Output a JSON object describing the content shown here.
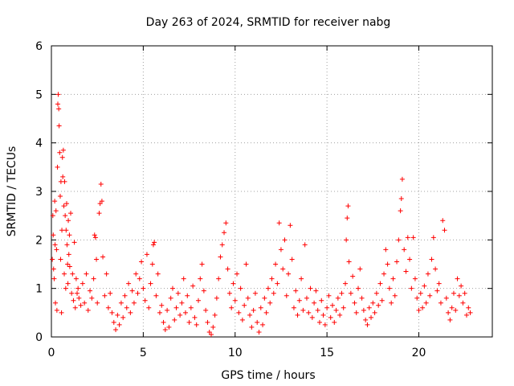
{
  "chart_data": {
    "type": "scatter",
    "title": "Day 263 of 2024, SRMTID for receiver nabg",
    "xlabel": "GPS time / hours",
    "ylabel": "SRMTID / TECUs",
    "xlim": [
      0,
      24
    ],
    "ylim": [
      0,
      6
    ],
    "xticks": [
      0,
      5,
      10,
      15,
      20
    ],
    "xtick_labels": [
      "0",
      "5",
      "10",
      "15",
      "20"
    ],
    "yticks": [
      0,
      1,
      2,
      3,
      4,
      5,
      6
    ],
    "ytick_labels": [
      "0",
      "1",
      "2",
      "3",
      "4",
      "5",
      "6"
    ],
    "grid": true,
    "marker": "+",
    "series_color": "#ff0000",
    "series": [
      {
        "name": "nabg",
        "points": [
          [
            0.05,
            1.6
          ],
          [
            0.08,
            2.5
          ],
          [
            0.1,
            2.1
          ],
          [
            0.12,
            1.4
          ],
          [
            0.15,
            1.2
          ],
          [
            0.18,
            2.8
          ],
          [
            0.2,
            1.9
          ],
          [
            0.22,
            0.7
          ],
          [
            0.25,
            2.6
          ],
          [
            0.28,
            1.8
          ],
          [
            0.3,
            0.55
          ],
          [
            0.33,
            3.5
          ],
          [
            0.35,
            4.8
          ],
          [
            0.37,
            5.0
          ],
          [
            0.4,
            4.7
          ],
          [
            0.42,
            4.35
          ],
          [
            0.45,
            3.8
          ],
          [
            0.48,
            2.9
          ],
          [
            0.5,
            1.6
          ],
          [
            0.52,
            3.2
          ],
          [
            0.55,
            0.5
          ],
          [
            0.57,
            2.2
          ],
          [
            0.6,
            3.7
          ],
          [
            0.62,
            3.3
          ],
          [
            0.65,
            3.85
          ],
          [
            0.68,
            2.7
          ],
          [
            0.7,
            1.3
          ],
          [
            0.72,
            3.2
          ],
          [
            0.75,
            2.5
          ],
          [
            0.78,
            1.0
          ],
          [
            0.8,
            2.2
          ],
          [
            0.83,
            2.75
          ],
          [
            0.85,
            1.9
          ],
          [
            0.88,
            1.5
          ],
          [
            0.9,
            1.1
          ],
          [
            0.92,
            2.4
          ],
          [
            0.95,
            1.7
          ],
          [
            0.98,
            2.1
          ],
          [
            1.0,
            1.45
          ],
          [
            1.05,
            2.55
          ],
          [
            1.1,
            0.9
          ],
          [
            1.15,
            1.3
          ],
          [
            1.2,
            0.75
          ],
          [
            1.25,
            1.95
          ],
          [
            1.3,
            0.6
          ],
          [
            1.35,
            1.2
          ],
          [
            1.4,
            0.9
          ],
          [
            1.45,
            1.0
          ],
          [
            1.5,
            0.8
          ],
          [
            1.6,
            0.65
          ],
          [
            1.7,
            1.1
          ],
          [
            1.8,
            0.7
          ],
          [
            1.9,
            1.3
          ],
          [
            2.0,
            0.55
          ],
          [
            2.1,
            0.95
          ],
          [
            2.2,
            0.8
          ],
          [
            2.3,
            1.2
          ],
          [
            2.35,
            2.1
          ],
          [
            2.4,
            2.05
          ],
          [
            2.45,
            1.6
          ],
          [
            2.5,
            0.7
          ],
          [
            2.6,
            2.55
          ],
          [
            2.65,
            2.75
          ],
          [
            2.7,
            3.15
          ],
          [
            2.75,
            2.8
          ],
          [
            2.8,
            1.65
          ],
          [
            2.9,
            0.85
          ],
          [
            3.0,
            1.3
          ],
          [
            3.1,
            0.6
          ],
          [
            3.2,
            0.9
          ],
          [
            3.3,
            0.5
          ],
          [
            3.4,
            0.3
          ],
          [
            3.5,
            0.15
          ],
          [
            3.6,
            0.45
          ],
          [
            3.7,
            0.25
          ],
          [
            3.8,
            0.7
          ],
          [
            3.9,
            0.4
          ],
          [
            4.0,
            0.85
          ],
          [
            4.1,
            0.6
          ],
          [
            4.2,
            1.1
          ],
          [
            4.3,
            0.5
          ],
          [
            4.4,
            0.95
          ],
          [
            4.5,
            0.7
          ],
          [
            4.6,
            1.3
          ],
          [
            4.7,
            0.9
          ],
          [
            4.8,
            1.2
          ],
          [
            4.9,
            1.55
          ],
          [
            5.0,
            1.0
          ],
          [
            5.1,
            0.75
          ],
          [
            5.2,
            1.7
          ],
          [
            5.3,
            0.6
          ],
          [
            5.4,
            1.1
          ],
          [
            5.5,
            1.5
          ],
          [
            5.55,
            1.9
          ],
          [
            5.6,
            1.95
          ],
          [
            5.7,
            0.85
          ],
          [
            5.8,
            1.3
          ],
          [
            5.9,
            0.5
          ],
          [
            6.0,
            0.65
          ],
          [
            6.1,
            0.3
          ],
          [
            6.2,
            0.15
          ],
          [
            6.3,
            0.55
          ],
          [
            6.4,
            0.2
          ],
          [
            6.5,
            0.8
          ],
          [
            6.6,
            1.0
          ],
          [
            6.7,
            0.35
          ],
          [
            6.8,
            0.6
          ],
          [
            6.9,
            0.9
          ],
          [
            7.0,
            0.45
          ],
          [
            7.1,
            0.7
          ],
          [
            7.2,
            1.2
          ],
          [
            7.3,
            0.5
          ],
          [
            7.4,
            0.85
          ],
          [
            7.5,
            0.3
          ],
          [
            7.6,
            0.6
          ],
          [
            7.7,
            1.05
          ],
          [
            7.8,
            0.4
          ],
          [
            7.9,
            0.25
          ],
          [
            8.0,
            0.75
          ],
          [
            8.1,
            1.2
          ],
          [
            8.2,
            1.5
          ],
          [
            8.3,
            0.95
          ],
          [
            8.4,
            0.55
          ],
          [
            8.5,
            0.3
          ],
          [
            8.6,
            0.1
          ],
          [
            8.7,
            0.05
          ],
          [
            8.8,
            0.2
          ],
          [
            8.9,
            0.45
          ],
          [
            9.0,
            0.8
          ],
          [
            9.1,
            1.2
          ],
          [
            9.2,
            1.65
          ],
          [
            9.3,
            1.9
          ],
          [
            9.4,
            2.15
          ],
          [
            9.5,
            2.35
          ],
          [
            9.6,
            1.4
          ],
          [
            9.7,
            0.9
          ],
          [
            9.8,
            0.6
          ],
          [
            9.9,
            1.1
          ],
          [
            10.0,
            0.75
          ],
          [
            10.1,
            1.3
          ],
          [
            10.2,
            0.5
          ],
          [
            10.3,
            1.0
          ],
          [
            10.4,
            0.35
          ],
          [
            10.5,
            0.65
          ],
          [
            10.6,
            1.5
          ],
          [
            10.7,
            0.8
          ],
          [
            10.8,
            0.45
          ],
          [
            10.9,
            0.2
          ],
          [
            11.0,
            0.55
          ],
          [
            11.1,
            0.9
          ],
          [
            11.2,
            0.3
          ],
          [
            11.3,
            0.1
          ],
          [
            11.4,
            0.6
          ],
          [
            11.5,
            0.25
          ],
          [
            11.6,
            0.8
          ],
          [
            11.7,
            0.5
          ],
          [
            11.8,
            1.0
          ],
          [
            11.9,
            0.7
          ],
          [
            12.0,
            1.2
          ],
          [
            12.1,
            0.9
          ],
          [
            12.2,
            1.5
          ],
          [
            12.3,
            1.1
          ],
          [
            12.4,
            2.35
          ],
          [
            12.5,
            1.8
          ],
          [
            12.6,
            1.4
          ],
          [
            12.7,
            2.0
          ],
          [
            12.8,
            0.85
          ],
          [
            12.9,
            1.3
          ],
          [
            13.0,
            2.3
          ],
          [
            13.1,
            1.6
          ],
          [
            13.2,
            0.6
          ],
          [
            13.3,
            0.95
          ],
          [
            13.4,
            0.45
          ],
          [
            13.5,
            0.75
          ],
          [
            13.6,
            1.2
          ],
          [
            13.7,
            0.55
          ],
          [
            13.8,
            1.9
          ],
          [
            13.9,
            0.8
          ],
          [
            14.0,
            0.5
          ],
          [
            14.1,
            1.0
          ],
          [
            14.2,
            0.4
          ],
          [
            14.3,
            0.7
          ],
          [
            14.4,
            0.95
          ],
          [
            14.5,
            0.55
          ],
          [
            14.6,
            0.3
          ],
          [
            14.7,
            0.75
          ],
          [
            14.8,
            0.45
          ],
          [
            14.9,
            0.25
          ],
          [
            15.0,
            0.6
          ],
          [
            15.1,
            0.85
          ],
          [
            15.2,
            0.4
          ],
          [
            15.3,
            0.65
          ],
          [
            15.4,
            0.3
          ],
          [
            15.5,
            0.55
          ],
          [
            15.6,
            0.8
          ],
          [
            15.7,
            0.45
          ],
          [
            15.8,
            0.9
          ],
          [
            15.9,
            0.6
          ],
          [
            16.0,
            1.1
          ],
          [
            16.05,
            2.0
          ],
          [
            16.1,
            2.45
          ],
          [
            16.15,
            2.7
          ],
          [
            16.2,
            1.55
          ],
          [
            16.3,
            0.9
          ],
          [
            16.4,
            1.25
          ],
          [
            16.5,
            0.7
          ],
          [
            16.6,
            0.5
          ],
          [
            16.7,
            1.0
          ],
          [
            16.8,
            1.4
          ],
          [
            16.9,
            0.8
          ],
          [
            17.0,
            0.55
          ],
          [
            17.1,
            0.35
          ],
          [
            17.2,
            0.25
          ],
          [
            17.3,
            0.6
          ],
          [
            17.4,
            0.4
          ],
          [
            17.5,
            0.7
          ],
          [
            17.6,
            0.5
          ],
          [
            17.7,
            0.9
          ],
          [
            17.8,
            0.65
          ],
          [
            17.9,
            1.1
          ],
          [
            18.0,
            0.75
          ],
          [
            18.1,
            1.3
          ],
          [
            18.2,
            1.8
          ],
          [
            18.3,
            1.5
          ],
          [
            18.4,
            1.0
          ],
          [
            18.5,
            0.7
          ],
          [
            18.6,
            1.2
          ],
          [
            18.7,
            0.85
          ],
          [
            18.8,
            1.55
          ],
          [
            18.9,
            2.0
          ],
          [
            19.0,
            2.6
          ],
          [
            19.05,
            2.85
          ],
          [
            19.1,
            3.25
          ],
          [
            19.2,
            1.8
          ],
          [
            19.3,
            1.35
          ],
          [
            19.4,
            2.05
          ],
          [
            19.5,
            1.6
          ],
          [
            19.6,
            1.0
          ],
          [
            19.7,
            2.05
          ],
          [
            19.8,
            1.2
          ],
          [
            19.9,
            0.8
          ],
          [
            20.0,
            0.55
          ],
          [
            20.1,
            0.9
          ],
          [
            20.2,
            0.6
          ],
          [
            20.3,
            1.05
          ],
          [
            20.4,
            0.7
          ],
          [
            20.5,
            1.3
          ],
          [
            20.6,
            0.85
          ],
          [
            20.7,
            1.6
          ],
          [
            20.8,
            2.05
          ],
          [
            20.9,
            1.4
          ],
          [
            21.0,
            0.95
          ],
          [
            21.1,
            1.1
          ],
          [
            21.2,
            0.7
          ],
          [
            21.3,
            2.4
          ],
          [
            21.4,
            2.2
          ],
          [
            21.5,
            0.8
          ],
          [
            21.6,
            0.5
          ],
          [
            21.7,
            0.35
          ],
          [
            21.8,
            0.6
          ],
          [
            21.9,
            0.9
          ],
          [
            22.0,
            0.55
          ],
          [
            22.1,
            1.2
          ],
          [
            22.2,
            0.85
          ],
          [
            22.3,
            1.05
          ],
          [
            22.4,
            0.7
          ],
          [
            22.5,
            0.9
          ],
          [
            22.6,
            0.45
          ],
          [
            22.7,
            0.6
          ],
          [
            22.8,
            0.5
          ]
        ]
      }
    ]
  }
}
